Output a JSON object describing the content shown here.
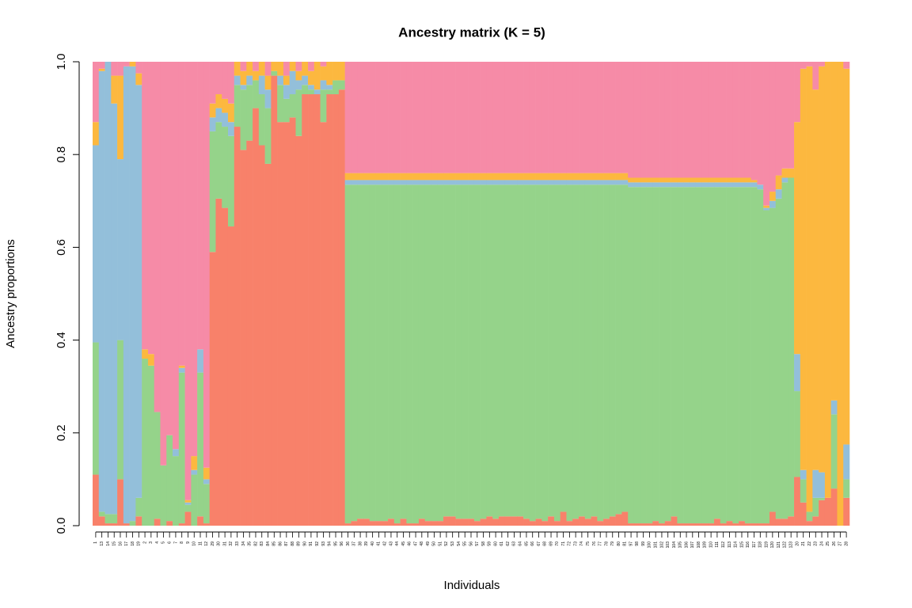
{
  "chart_data": {
    "type": "stacked_bar",
    "title": "Ancestry matrix (K = 5)",
    "xlabel": "Individuals",
    "ylabel": "Ancestry proportions",
    "categories": [
      "1",
      "13",
      "14",
      "15",
      "16",
      "17",
      "18",
      "19",
      "2",
      "3",
      "4",
      "5",
      "6",
      "7",
      "8",
      "9",
      "10",
      "11",
      "12",
      "29",
      "30",
      "31",
      "32",
      "33",
      "34",
      "35",
      "82",
      "83",
      "84",
      "85",
      "86",
      "87",
      "88",
      "89",
      "90",
      "91",
      "92",
      "93",
      "94",
      "95",
      "96",
      "36",
      "37",
      "38",
      "39",
      "40",
      "41",
      "42",
      "43",
      "44",
      "45",
      "46",
      "47",
      "48",
      "49",
      "50",
      "51",
      "52",
      "53",
      "54",
      "55",
      "56",
      "57",
      "58",
      "59",
      "60",
      "61",
      "62",
      "63",
      "64",
      "65",
      "66",
      "67",
      "68",
      "69",
      "70",
      "71",
      "72",
      "73",
      "74",
      "75",
      "76",
      "77",
      "78",
      "79",
      "80",
      "81",
      "97",
      "98",
      "99",
      "100",
      "101",
      "102",
      "103",
      "104",
      "105",
      "106",
      "107",
      "108",
      "109",
      "110",
      "111",
      "112",
      "113",
      "114",
      "115",
      "116",
      "117",
      "118",
      "119",
      "120",
      "121",
      "122",
      "123",
      "20",
      "21",
      "22",
      "23",
      "24",
      "25",
      "26",
      "27",
      "28"
    ],
    "series": [
      {
        "color": "#F8816A",
        "values": [
          0.11,
          0.02,
          0.005,
          0.005,
          0.1,
          0.005,
          0,
          0.02,
          0,
          0,
          0.015,
          0,
          0.01,
          0,
          0.005,
          0.03,
          0,
          0.02,
          0.005,
          0.59,
          0.705,
          0.685,
          0.645,
          0.86,
          0.81,
          0.83,
          0.9,
          0.82,
          0.78,
          0.97,
          0.87,
          0.87,
          0.88,
          0.84,
          0.93,
          0.93,
          0.93,
          0.87,
          0.93,
          0.93,
          0.94,
          0.005,
          0.01,
          0.015,
          0.015,
          0.01,
          0.01,
          0.01,
          0.015,
          0.005,
          0.015,
          0.005,
          0.005,
          0.015,
          0.01,
          0.01,
          0.01,
          0.02,
          0.02,
          0.015,
          0.015,
          0.015,
          0.01,
          0.015,
          0.02,
          0.015,
          0.02,
          0.02,
          0.02,
          0.02,
          0.015,
          0.01,
          0.015,
          0.01,
          0.02,
          0.01,
          0.03,
          0.01,
          0.015,
          0.02,
          0.015,
          0.02,
          0.01,
          0.015,
          0.02,
          0.025,
          0.03,
          0.005,
          0.005,
          0.005,
          0.005,
          0.01,
          0.005,
          0.01,
          0.02,
          0.005,
          0.005,
          0.005,
          0.005,
          0.005,
          0.005,
          0.015,
          0.005,
          0.01,
          0.005,
          0.01,
          0.005,
          0.005,
          0.005,
          0.005,
          0.03,
          0.015,
          0.015,
          0.02,
          0.105,
          0.05,
          0.01,
          0.02,
          0.055,
          0.06,
          0.08,
          0,
          0.06
        ]
      },
      {
        "color": "#95D38A",
        "values": [
          0.285,
          0.01,
          0.02,
          0.02,
          0.3,
          0,
          0.01,
          0.04,
          0.36,
          0.345,
          0.23,
          0.13,
          0.185,
          0.15,
          0.325,
          0.015,
          0.11,
          0.31,
          0.085,
          0.26,
          0.165,
          0.175,
          0.195,
          0.09,
          0.13,
          0.12,
          0.06,
          0.11,
          0.12,
          0.01,
          0.08,
          0.05,
          0.05,
          0.1,
          0.02,
          0.01,
          0,
          0.07,
          0.01,
          0.03,
          0.02,
          0.73,
          0.725,
          0.72,
          0.72,
          0.725,
          0.725,
          0.725,
          0.72,
          0.73,
          0.72,
          0.73,
          0.73,
          0.72,
          0.725,
          0.725,
          0.725,
          0.715,
          0.715,
          0.72,
          0.72,
          0.72,
          0.725,
          0.72,
          0.715,
          0.72,
          0.715,
          0.715,
          0.715,
          0.715,
          0.72,
          0.725,
          0.72,
          0.725,
          0.715,
          0.725,
          0.705,
          0.725,
          0.72,
          0.715,
          0.72,
          0.715,
          0.725,
          0.72,
          0.715,
          0.71,
          0.705,
          0.725,
          0.725,
          0.725,
          0.725,
          0.72,
          0.725,
          0.72,
          0.71,
          0.725,
          0.725,
          0.725,
          0.725,
          0.725,
          0.725,
          0.715,
          0.725,
          0.72,
          0.725,
          0.72,
          0.725,
          0.725,
          0.72,
          0.675,
          0.655,
          0.69,
          0.725,
          0.73,
          0.185,
          0.05,
          0.02,
          0.04,
          0.005,
          0,
          0.16,
          0,
          0.04
        ]
      },
      {
        "color": "#93BFDA",
        "values": [
          0.425,
          0.95,
          0.975,
          0.885,
          0.39,
          0.985,
          0.98,
          0.89,
          0,
          0,
          0,
          0,
          0,
          0.015,
          0.01,
          0.005,
          0.01,
          0.05,
          0.01,
          0.03,
          0.03,
          0.03,
          0.03,
          0.02,
          0.01,
          0.02,
          0,
          0.04,
          0.04,
          0,
          0.02,
          0.03,
          0.05,
          0.02,
          0.02,
          0.01,
          0.01,
          0.02,
          0.01,
          0,
          0,
          0.01,
          0.01,
          0.01,
          0.01,
          0.01,
          0.01,
          0.01,
          0.01,
          0.01,
          0.01,
          0.01,
          0.01,
          0.01,
          0.01,
          0.01,
          0.01,
          0.01,
          0.01,
          0.01,
          0.01,
          0.01,
          0.01,
          0.01,
          0.01,
          0.01,
          0.01,
          0.01,
          0.01,
          0.01,
          0.01,
          0.01,
          0.01,
          0.01,
          0.01,
          0.01,
          0.01,
          0.01,
          0.01,
          0.01,
          0.01,
          0.01,
          0.01,
          0.01,
          0.01,
          0.01,
          0.01,
          0.01,
          0.01,
          0.01,
          0.01,
          0.01,
          0.01,
          0.01,
          0.01,
          0.01,
          0.01,
          0.01,
          0.01,
          0.01,
          0.01,
          0.01,
          0.01,
          0.01,
          0.01,
          0.01,
          0.01,
          0.01,
          0.01,
          0.005,
          0.015,
          0.02,
          0.01,
          0,
          0.08,
          0.02,
          0,
          0.06,
          0.055,
          0,
          0.03,
          0,
          0.075
        ]
      },
      {
        "color": "#FCB83F",
        "values": [
          0.05,
          0.005,
          0,
          0.06,
          0.18,
          0,
          0.01,
          0.025,
          0.02,
          0.025,
          0,
          0,
          0,
          0,
          0.005,
          0.005,
          0.03,
          0,
          0.025,
          0.03,
          0.03,
          0.03,
          0.04,
          0.03,
          0.03,
          0.03,
          0.02,
          0.03,
          0.03,
          0.02,
          0.03,
          0.02,
          0.02,
          0.02,
          0.03,
          0.03,
          0.06,
          0.03,
          0.05,
          0.04,
          0.04,
          0.015,
          0.015,
          0.015,
          0.015,
          0.015,
          0.015,
          0.015,
          0.015,
          0.015,
          0.015,
          0.015,
          0.015,
          0.015,
          0.015,
          0.015,
          0.015,
          0.015,
          0.015,
          0.015,
          0.015,
          0.015,
          0.015,
          0.015,
          0.015,
          0.015,
          0.015,
          0.015,
          0.015,
          0.015,
          0.015,
          0.015,
          0.015,
          0.015,
          0.015,
          0.015,
          0.015,
          0.015,
          0.015,
          0.015,
          0.015,
          0.015,
          0.015,
          0.015,
          0.015,
          0.015,
          0.015,
          0.01,
          0.01,
          0.01,
          0.01,
          0.01,
          0.01,
          0.01,
          0.01,
          0.01,
          0.01,
          0.01,
          0.01,
          0.01,
          0.01,
          0.01,
          0.01,
          0.01,
          0.01,
          0.01,
          0.01,
          0.005,
          0,
          0.005,
          0.02,
          0.03,
          0.02,
          0.02,
          0.5,
          0.865,
          0.96,
          0.82,
          0.875,
          0.94,
          0.73,
          1.0,
          0.81
        ]
      },
      {
        "color": "#F68BA7",
        "values": [
          0.13,
          0.015,
          0,
          0.03,
          0.03,
          0.01,
          0,
          0.025,
          0.62,
          0.63,
          0.755,
          0.87,
          0.805,
          0.835,
          0.655,
          0.945,
          0.85,
          0.62,
          0.875,
          0.09,
          0.07,
          0.08,
          0.09,
          0,
          0.02,
          0,
          0.02,
          0,
          0.03,
          0,
          0,
          0.03,
          0,
          0.02,
          0,
          0.02,
          0,
          0.01,
          0,
          0,
          0,
          0.24,
          0.24,
          0.24,
          0.24,
          0.24,
          0.24,
          0.24,
          0.24,
          0.24,
          0.24,
          0.24,
          0.24,
          0.24,
          0.24,
          0.24,
          0.24,
          0.24,
          0.24,
          0.24,
          0.24,
          0.24,
          0.24,
          0.24,
          0.24,
          0.24,
          0.24,
          0.24,
          0.24,
          0.24,
          0.24,
          0.24,
          0.24,
          0.24,
          0.24,
          0.24,
          0.24,
          0.24,
          0.24,
          0.24,
          0.24,
          0.24,
          0.24,
          0.24,
          0.24,
          0.24,
          0.24,
          0.25,
          0.25,
          0.25,
          0.25,
          0.25,
          0.25,
          0.25,
          0.25,
          0.25,
          0.25,
          0.25,
          0.25,
          0.25,
          0.25,
          0.25,
          0.25,
          0.25,
          0.25,
          0.25,
          0.25,
          0.255,
          0.265,
          0.31,
          0.28,
          0.245,
          0.23,
          0.23,
          0.13,
          0.015,
          0.01,
          0.06,
          0.01,
          0,
          0,
          0,
          0.015
        ]
      }
    ],
    "ylim": [
      0,
      1
    ],
    "yticks": [
      {
        "value": 0,
        "label": "0.0"
      },
      0.2,
      0.4,
      0.6,
      0.8,
      {
        "value": 1,
        "label": "1.0"
      }
    ]
  }
}
